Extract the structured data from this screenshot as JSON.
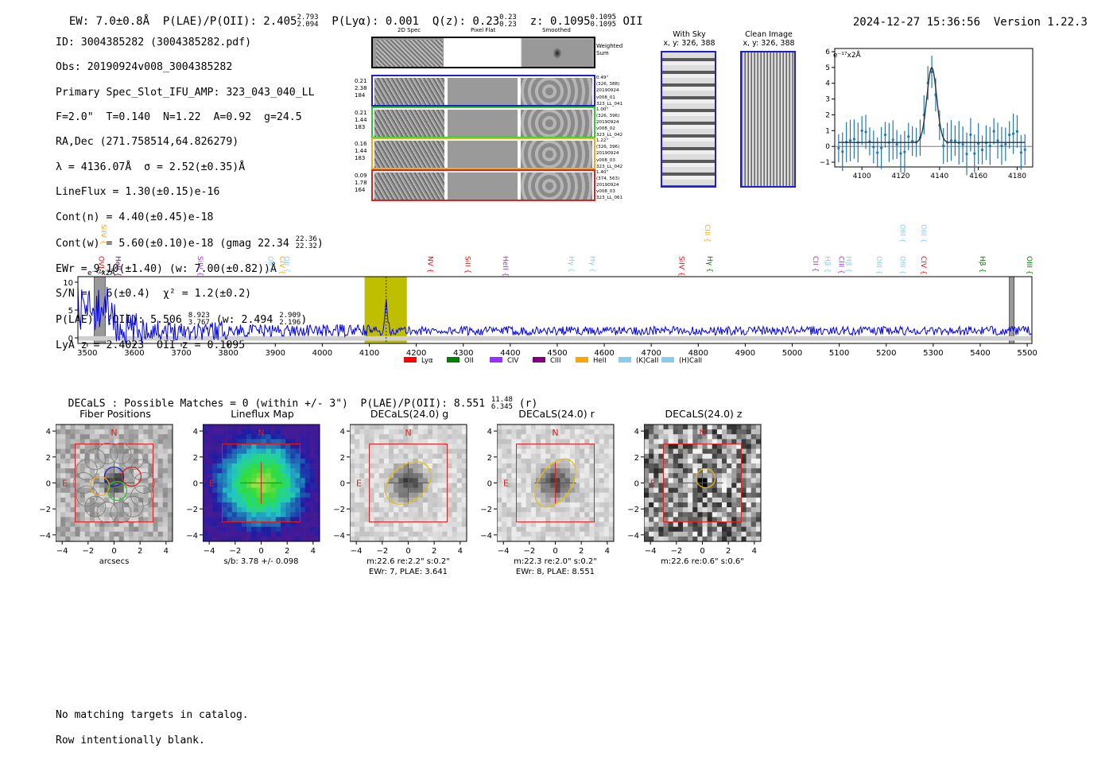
{
  "header": {
    "ew": "EW: 7.0±0.8Å",
    "plae": "P(LAE)/P(OII): 2.405",
    "plae_hi": "2.793",
    "plae_lo": "2.094",
    "plya": "P(Lyα): 0.001",
    "q": "Q(z): 0.23",
    "q_hi": "0.23",
    "q_lo": "0.23",
    "z": "z: 0.1095",
    "z_hi": "0.1095",
    "z_lo": "0.1095",
    "z_line": "OII",
    "timestamp": "2024-12-27 15:36:56",
    "version": "Version 1.22.3"
  },
  "info": {
    "id": "ID: 3004385282 (3004385282.pdf)",
    "obs": "Obs: 20190924v008_3004385282",
    "slot": "Primary Spec_Slot_IFU_AMP: 323_043_040_LL",
    "params": "F=2.0\"  T=0.140  N=1.22  A=0.92  g=24.5",
    "radec": "RA,Dec (271.758514,64.826279)",
    "lambda": "λ = 4136.07Å  σ = 2.52(±0.35)Å",
    "lineflux": "LineFlux = 1.30(±0.15)e-16",
    "contn": "Cont(n) = 4.40(±0.45)e-18",
    "contw": "Cont(w) = 5.60(±0.10)e-18 (gmag 22.34",
    "contw_hi": "22.36",
    "contw_lo": "22.32",
    "ewr": "EWr = 9.10(±1.40) (w: 7.00(±0.82))Å",
    "sn": "S/N = 7.6(±0.4)  χ² = 1.2(±0.2)",
    "plae2": "P(LAE)/P(OII): 5.506",
    "plae2_hi": "8.923",
    "plae2_lo": "3.767",
    "plae2_w": "(w: 2.494",
    "plae2_w_hi": "2.909",
    "plae2_w_lo": "2.196",
    "lyaz": "LyA z = 2.4023  OII z = 0.1095"
  },
  "cutouts": {
    "col_labels": [
      "2D Spec",
      "Pixel Flat",
      "Smoothed"
    ],
    "weighted_label": "Weighted Sum",
    "rows": [
      {
        "left": [
          "0.21",
          "2.38",
          "184"
        ],
        "right": [
          "0.49\"",
          "(326, 388)",
          "20190924",
          "v008_01",
          "323_LL_041"
        ],
        "color": "#1f1fd0"
      },
      {
        "left": [
          "0.21",
          "1.44",
          "183"
        ],
        "right": [
          "1.00\"",
          "(326, 396)",
          "20190924",
          "v008_02",
          "323_LL_042"
        ],
        "color": "#2ec92e"
      },
      {
        "left": [
          "0.16",
          "1.44",
          "183"
        ],
        "right": [
          "1.22\"",
          "(326, 396)",
          "20190924",
          "v008_03",
          "323_LL_042"
        ],
        "color": "#f5a623"
      },
      {
        "left": [
          "0.09",
          "1.78",
          "164"
        ],
        "right": [
          "1.40\"",
          "(374, 563)",
          "20190924",
          "v008_03",
          "323_LL_061"
        ],
        "color": "#e02020"
      }
    ],
    "with_sky_title": "With Sky",
    "with_sky_sub": "x, y: 326, 388",
    "clean_title": "Clean Image",
    "clean_sub": "x, y: 326, 388"
  },
  "zoom_chart": {
    "ylabel": "e⁻¹⁷x2Å",
    "x_ticks": [
      "4100",
      "4120",
      "4140",
      "4160",
      "4180"
    ],
    "y_ticks": [
      "−1",
      "0",
      "1",
      "2",
      "3",
      "4",
      "5",
      "6"
    ]
  },
  "chart_data": {
    "type": "line",
    "title": "",
    "ylabel": "e⁻¹⁷x2Å",
    "xlim": [
      3480,
      5510
    ],
    "ylim": [
      -1,
      11
    ],
    "x_ticks": [
      "3500",
      "3600",
      "3700",
      "3800",
      "3900",
      "4000",
      "4100",
      "4200",
      "4300",
      "4400",
      "4500",
      "4600",
      "4700",
      "4800",
      "4900",
      "5000",
      "5100",
      "5200",
      "5300",
      "5400",
      "5500"
    ],
    "y_ticks": [
      "0",
      "5",
      "10"
    ],
    "highlight_band": [
      4090,
      4180
    ],
    "line_center": 4136,
    "legend": [
      {
        "label": "Lyα",
        "color": "#ff0000"
      },
      {
        "label": "OII",
        "color": "#008000"
      },
      {
        "label": "CIV",
        "color": "#9b30ff"
      },
      {
        "label": "CIII",
        "color": "#800080"
      },
      {
        "label": "HeII",
        "color": "#ffa500"
      },
      {
        "label": "(K)CaII",
        "color": "#87ceeb"
      },
      {
        "label": "(H)CaII",
        "color": "#87ceeb"
      }
    ],
    "line_labels": [
      {
        "label": "SiIV",
        "x": 3525,
        "row": 0,
        "color": "#ffa500"
      },
      {
        "label": "OVI",
        "x": 3520,
        "row": 1,
        "color": "#ff0000"
      },
      {
        "label": "HeII",
        "x": 3555,
        "row": 1,
        "color": "#800080"
      },
      {
        "label": "SiIV",
        "x": 3730,
        "row": 1,
        "color": "#9b30ff"
      },
      {
        "label": "OII",
        "x": 3880,
        "row": 1,
        "color": "#87ceeb"
      },
      {
        "label": "CIV",
        "x": 3905,
        "row": 1,
        "color": "#ffa500"
      },
      {
        "label": "OII",
        "x": 3915,
        "row": 1,
        "color": "#87ceeb"
      },
      {
        "label": "NV",
        "x": 4220,
        "row": 1,
        "color": "#ff0000"
      },
      {
        "label": "SiII",
        "x": 4300,
        "row": 1,
        "color": "#ff0000"
      },
      {
        "label": "HeII",
        "x": 4380,
        "row": 1,
        "color": "#9b30ff"
      },
      {
        "label": "Hγ",
        "x": 4520,
        "row": 1,
        "color": "#87ceeb"
      },
      {
        "label": "Hγ",
        "x": 4565,
        "row": 1,
        "color": "#87ceeb"
      },
      {
        "label": "SiIV",
        "x": 4755,
        "row": 1,
        "color": "#ff0000"
      },
      {
        "label": "CIII",
        "x": 4810,
        "row": 0,
        "color": "#ffa500"
      },
      {
        "label": "Hγ",
        "x": 4815,
        "row": 1,
        "color": "#008000"
      },
      {
        "label": "CII",
        "x": 5040,
        "row": 1,
        "color": "#9b30ff"
      },
      {
        "label": "Hβ",
        "x": 5065,
        "row": 1,
        "color": "#87ceeb"
      },
      {
        "label": "CIII",
        "x": 5095,
        "row": 1,
        "color": "#9b30ff"
      },
      {
        "label": "Hβ",
        "x": 5110,
        "row": 1,
        "color": "#87ceeb"
      },
      {
        "label": "OIII",
        "x": 5175,
        "row": 1,
        "color": "#87ceeb"
      },
      {
        "label": "OIII",
        "x": 5225,
        "row": 0,
        "color": "#87ceeb"
      },
      {
        "label": "OIII",
        "x": 5225,
        "row": 1,
        "color": "#87ceeb"
      },
      {
        "label": "OIII",
        "x": 5270,
        "row": 0,
        "color": "#87ceeb"
      },
      {
        "label": "CIV",
        "x": 5270,
        "row": 1,
        "color": "#ff0000"
      },
      {
        "label": "Hβ",
        "x": 5395,
        "row": 1,
        "color": "#008000"
      },
      {
        "label": "OIII",
        "x": 5495,
        "row": 1,
        "color": "#008000"
      }
    ]
  },
  "decals": {
    "summary": "DECaLS : Possible Matches = 0 (within +/- 3\")  P(LAE)/P(OII): 8.551",
    "summary_hi": "11.48",
    "summary_lo": "6.345",
    "summary_band": "(r)",
    "panels": [
      {
        "title": "Fiber Positions",
        "caption1": "arcsecs",
        "caption2": ""
      },
      {
        "title": "Lineflux Map",
        "caption1": "s/b: 3.78 +/- 0.098",
        "caption2": ""
      },
      {
        "title": "DECaLS(24.0) g",
        "caption1": "m:22.6  re:2.2\"  s:0.2\"",
        "caption2": "EWr: 7, PLAE: 3.641"
      },
      {
        "title": "DECaLS(24.0) r",
        "caption1": "m:22.3  re:2.0\"  s:0.2\"",
        "caption2": "EWr: 8, PLAE: 8.551"
      },
      {
        "title": "DECaLS(24.0) z",
        "caption1": "m:22.6  re:0.6\"  s:0.6\"",
        "caption2": ""
      }
    ],
    "axis_ticks": [
      "−4",
      "−2",
      "0",
      "2",
      "4"
    ],
    "y_ticks": [
      "4",
      "2",
      "0",
      "−2",
      "−4"
    ],
    "compass_n": "N",
    "compass_e": "E"
  },
  "footer": {
    "line1": "No matching targets in catalog.",
    "line2": "Row intentionally blank."
  }
}
